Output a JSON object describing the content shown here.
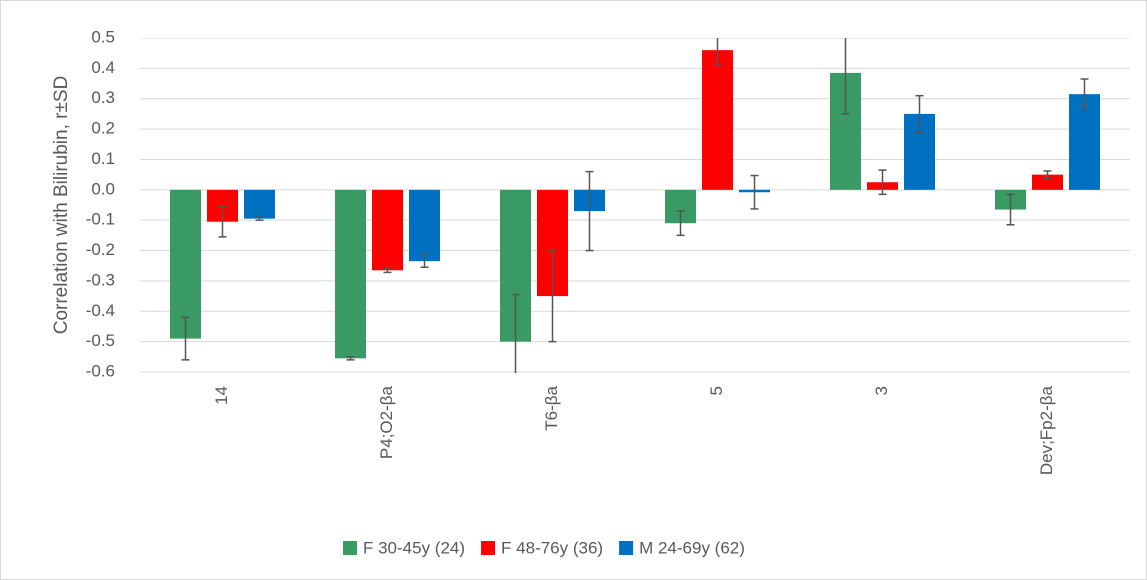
{
  "chart_data": {
    "type": "bar",
    "y_label": "Correlation with Bilirubin, r±SD",
    "categories": [
      "14",
      "P4;O2-βa",
      "T6-βa",
      "5",
      "3",
      "Dev;Fp2-βa"
    ],
    "series": [
      {
        "name": "F 30-45y (24)",
        "color": "#3a9a64",
        "values": [
          -0.49,
          -0.555,
          -0.5,
          -0.11,
          0.385,
          -0.065
        ],
        "errors": [
          0.07,
          0.005,
          0.155,
          0.04,
          0.135,
          0.05
        ]
      },
      {
        "name": "F 48-76y (36)",
        "color": "#ff0000",
        "values": [
          -0.105,
          -0.265,
          -0.35,
          0.46,
          0.025,
          0.05
        ],
        "errors": [
          0.05,
          0.007,
          0.15,
          0.05,
          0.04,
          0.012
        ]
      },
      {
        "name": "M 24-69y (62)",
        "color": "#0070c0",
        "values": [
          -0.095,
          -0.235,
          -0.07,
          -0.008,
          0.25,
          0.315
        ],
        "errors": [
          0.005,
          0.02,
          0.13,
          0.055,
          0.06,
          0.05
        ]
      }
    ],
    "ylim": [
      -0.6,
      0.5
    ],
    "yticks": [
      -0.6,
      -0.5,
      -0.4,
      -0.3,
      -0.2,
      -0.1,
      {
        "value": 0,
        "label": "0.0"
      },
      0.1,
      0.2,
      0.3,
      0.4,
      0.5
    ],
    "grid": true
  }
}
